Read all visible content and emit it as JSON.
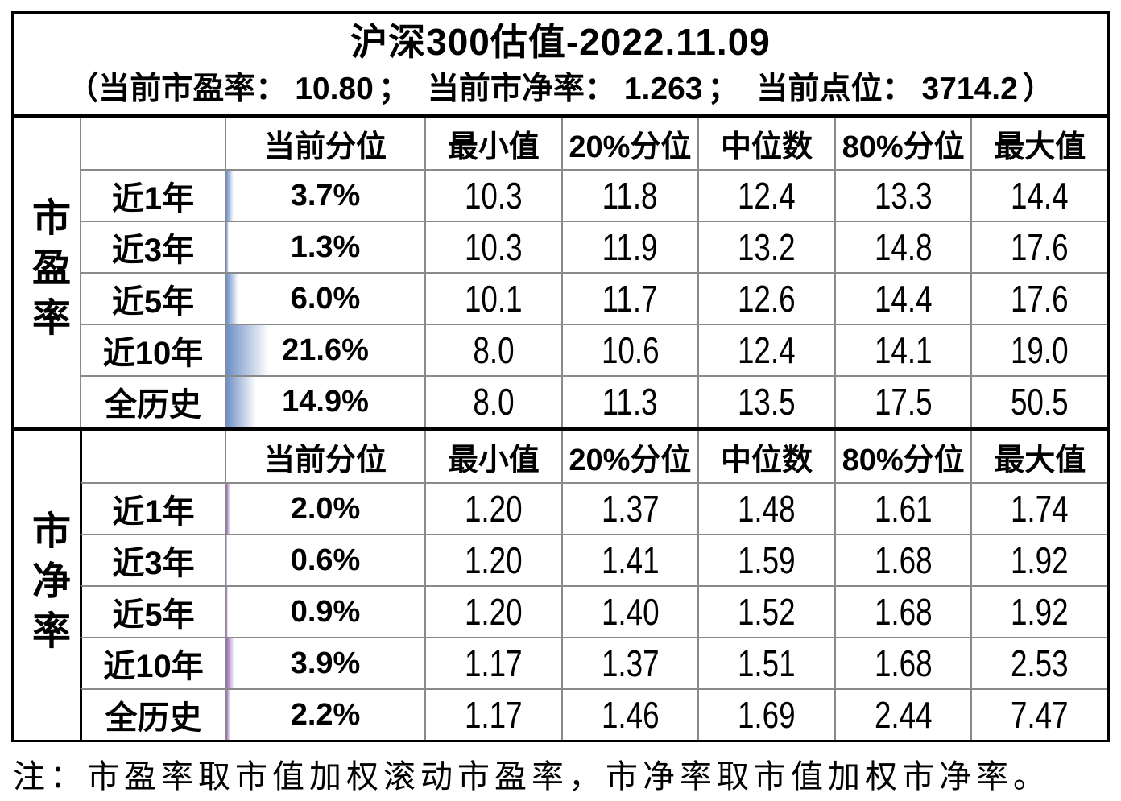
{
  "header": {
    "title": "沪深300估值-2022.11.09",
    "subtitle_parts": {
      "open": "（",
      "pe_label": "当前市盈率：",
      "pe_value": "10.80",
      "sep1": "；",
      "pb_label": "当前市净率：",
      "pb_value": "1.263",
      "sep2": "；",
      "point_label": "当前点位：",
      "point_value": "3714.2",
      "close": "）"
    }
  },
  "colors": {
    "pe_bar": "#6C8FC5",
    "pb_bar": "#9066AE",
    "gridline": "#8a8a8a",
    "border": "#000000"
  },
  "chart_data": [
    {
      "type": "table",
      "category_label": "市盈率",
      "bar_color": "#6C8FC5",
      "columns": [
        "当前分位",
        "最小值",
        "20%分位",
        "中位数",
        "80%分位",
        "最大值"
      ],
      "rows": [
        {
          "label": "近1年",
          "percentile_display": "3.7%",
          "percentile_pct": 3.7,
          "values": [
            "10.3",
            "11.8",
            "12.4",
            "13.3",
            "14.4"
          ]
        },
        {
          "label": "近3年",
          "percentile_display": "1.3%",
          "percentile_pct": 1.3,
          "values": [
            "10.3",
            "11.9",
            "13.2",
            "14.8",
            "17.6"
          ]
        },
        {
          "label": "近5年",
          "percentile_display": "6.0%",
          "percentile_pct": 6.0,
          "values": [
            "10.1",
            "11.7",
            "12.6",
            "14.4",
            "17.6"
          ]
        },
        {
          "label": "近10年",
          "percentile_display": "21.6%",
          "percentile_pct": 21.6,
          "values": [
            "8.0",
            "10.6",
            "12.4",
            "14.1",
            "19.0"
          ]
        },
        {
          "label": "全历史",
          "percentile_display": "14.9%",
          "percentile_pct": 14.9,
          "values": [
            "8.0",
            "11.3",
            "13.5",
            "17.5",
            "50.5"
          ]
        }
      ]
    },
    {
      "type": "table",
      "category_label": "市净率",
      "bar_color": "#9066AE",
      "columns": [
        "当前分位",
        "最小值",
        "20%分位",
        "中位数",
        "80%分位",
        "最大值"
      ],
      "rows": [
        {
          "label": "近1年",
          "percentile_display": "2.0%",
          "percentile_pct": 2.0,
          "values": [
            "1.20",
            "1.37",
            "1.48",
            "1.61",
            "1.74"
          ]
        },
        {
          "label": "近3年",
          "percentile_display": "0.6%",
          "percentile_pct": 0.6,
          "values": [
            "1.20",
            "1.41",
            "1.59",
            "1.68",
            "1.92"
          ]
        },
        {
          "label": "近5年",
          "percentile_display": "0.9%",
          "percentile_pct": 0.9,
          "values": [
            "1.20",
            "1.40",
            "1.52",
            "1.68",
            "1.92"
          ]
        },
        {
          "label": "近10年",
          "percentile_display": "3.9%",
          "percentile_pct": 3.9,
          "values": [
            "1.17",
            "1.37",
            "1.51",
            "1.68",
            "2.53"
          ]
        },
        {
          "label": "全历史",
          "percentile_display": "2.2%",
          "percentile_pct": 2.2,
          "values": [
            "1.17",
            "1.46",
            "1.69",
            "2.44",
            "7.47"
          ]
        }
      ]
    }
  ],
  "footnote": "注：市盈率取市值加权滚动市盈率，市净率取市值加权市净率。"
}
